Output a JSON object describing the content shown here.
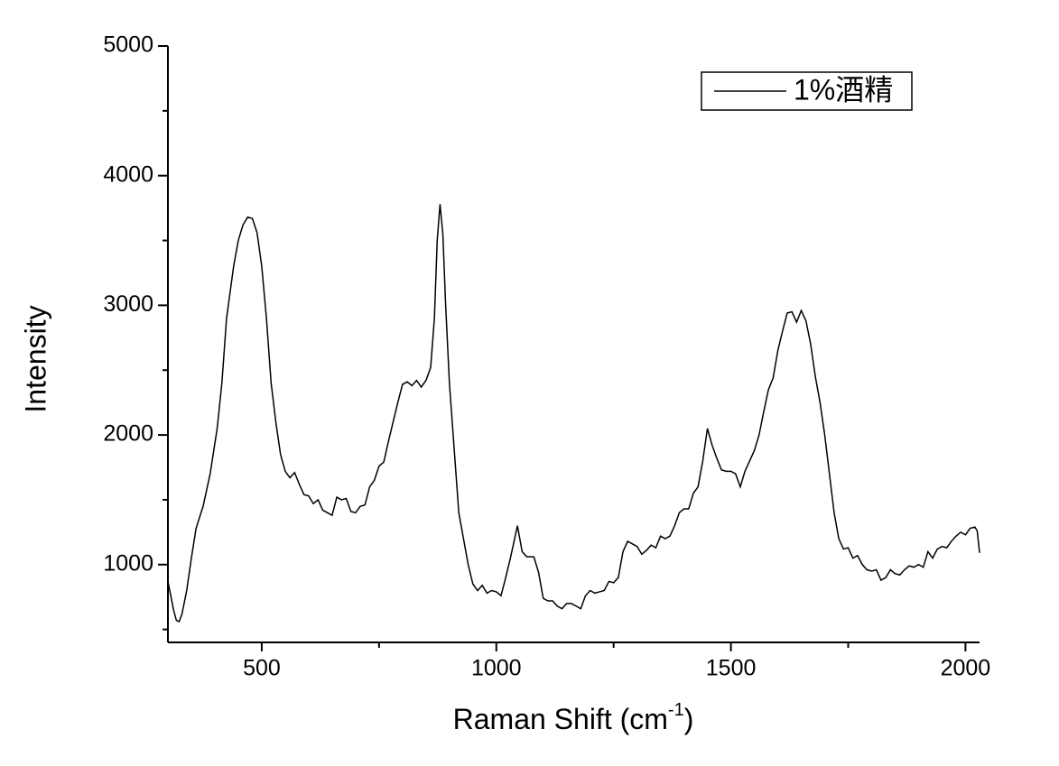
{
  "chart_data": {
    "type": "line",
    "xlabel_parts": [
      "Raman Shift (cm",
      "-1",
      ")"
    ],
    "ylabel": "Intensity",
    "xlim": [
      300,
      2030
    ],
    "ylim": [
      400,
      5000
    ],
    "xticks": [
      500,
      1000,
      1500,
      2000
    ],
    "yticks": [
      1000,
      2000,
      3000,
      4000,
      5000
    ],
    "xminorticks": [
      750,
      1250,
      1750
    ],
    "yminorticks": [
      500,
      1500,
      2500,
      3500,
      4500
    ],
    "legend": "top-right",
    "x": [
      300,
      305,
      312,
      318,
      324,
      330,
      340,
      350,
      360,
      375,
      390,
      405,
      415,
      425,
      440,
      450,
      460,
      470,
      480,
      490,
      500,
      510,
      520,
      530,
      540,
      550,
      560,
      570,
      580,
      590,
      600,
      610,
      620,
      630,
      640,
      650,
      660,
      670,
      680,
      690,
      700,
      710,
      720,
      730,
      740,
      750,
      760,
      770,
      780,
      790,
      800,
      810,
      820,
      830,
      840,
      850,
      860,
      868,
      874,
      880,
      886,
      892,
      900,
      910,
      920,
      930,
      940,
      950,
      960,
      970,
      980,
      990,
      1000,
      1010,
      1020,
      1030,
      1045,
      1055,
      1065,
      1080,
      1090,
      1100,
      1110,
      1120,
      1130,
      1140,
      1150,
      1160,
      1170,
      1180,
      1190,
      1200,
      1210,
      1220,
      1230,
      1240,
      1250,
      1260,
      1270,
      1280,
      1290,
      1300,
      1310,
      1320,
      1330,
      1340,
      1350,
      1360,
      1370,
      1380,
      1390,
      1400,
      1410,
      1420,
      1430,
      1440,
      1450,
      1460,
      1470,
      1480,
      1490,
      1500,
      1510,
      1520,
      1530,
      1540,
      1550,
      1560,
      1570,
      1580,
      1590,
      1600,
      1610,
      1620,
      1630,
      1640,
      1650,
      1660,
      1670,
      1680,
      1690,
      1700,
      1710,
      1720,
      1730,
      1740,
      1750,
      1760,
      1770,
      1780,
      1790,
      1800,
      1810,
      1820,
      1830,
      1840,
      1850,
      1860,
      1870,
      1880,
      1890,
      1900,
      1910,
      1920,
      1930,
      1940,
      1950,
      1960,
      1970,
      1980,
      1990,
      2000,
      2010,
      2020,
      2025,
      2030
    ],
    "series": [
      {
        "name": "1%酒精",
        "color": "#000000",
        "values": [
          870,
          780,
          650,
          570,
          560,
          620,
          800,
          1050,
          1280,
          1450,
          1700,
          2050,
          2400,
          2900,
          3300,
          3500,
          3620,
          3680,
          3670,
          3560,
          3300,
          2900,
          2400,
          2100,
          1850,
          1720,
          1670,
          1710,
          1620,
          1540,
          1530,
          1470,
          1500,
          1420,
          1400,
          1380,
          1520,
          1500,
          1510,
          1410,
          1400,
          1450,
          1460,
          1600,
          1650,
          1760,
          1790,
          1950,
          2100,
          2250,
          2390,
          2410,
          2380,
          2420,
          2370,
          2420,
          2520,
          2900,
          3500,
          3780,
          3550,
          3000,
          2400,
          1900,
          1400,
          1200,
          1000,
          850,
          800,
          840,
          780,
          800,
          790,
          760,
          900,
          1050,
          1300,
          1100,
          1060,
          1060,
          940,
          740,
          720,
          720,
          680,
          660,
          700,
          700,
          680,
          660,
          760,
          800,
          780,
          790,
          800,
          870,
          860,
          900,
          1100,
          1180,
          1160,
          1140,
          1080,
          1110,
          1150,
          1130,
          1220,
          1200,
          1220,
          1300,
          1400,
          1430,
          1430,
          1550,
          1600,
          1800,
          2050,
          1920,
          1820,
          1730,
          1720,
          1720,
          1700,
          1600,
          1720,
          1800,
          1880,
          2000,
          2180,
          2350,
          2440,
          2650,
          2800,
          2940,
          2950,
          2870,
          2960,
          2880,
          2700,
          2450,
          2250,
          2000,
          1700,
          1400,
          1200,
          1120,
          1130,
          1050,
          1070,
          1000,
          960,
          950,
          960,
          880,
          900,
          960,
          930,
          920,
          960,
          990,
          980,
          1000,
          980,
          1100,
          1050,
          1120,
          1140,
          1130,
          1180,
          1220,
          1250,
          1230,
          1280,
          1290,
          1260,
          1090
        ]
      }
    ]
  }
}
